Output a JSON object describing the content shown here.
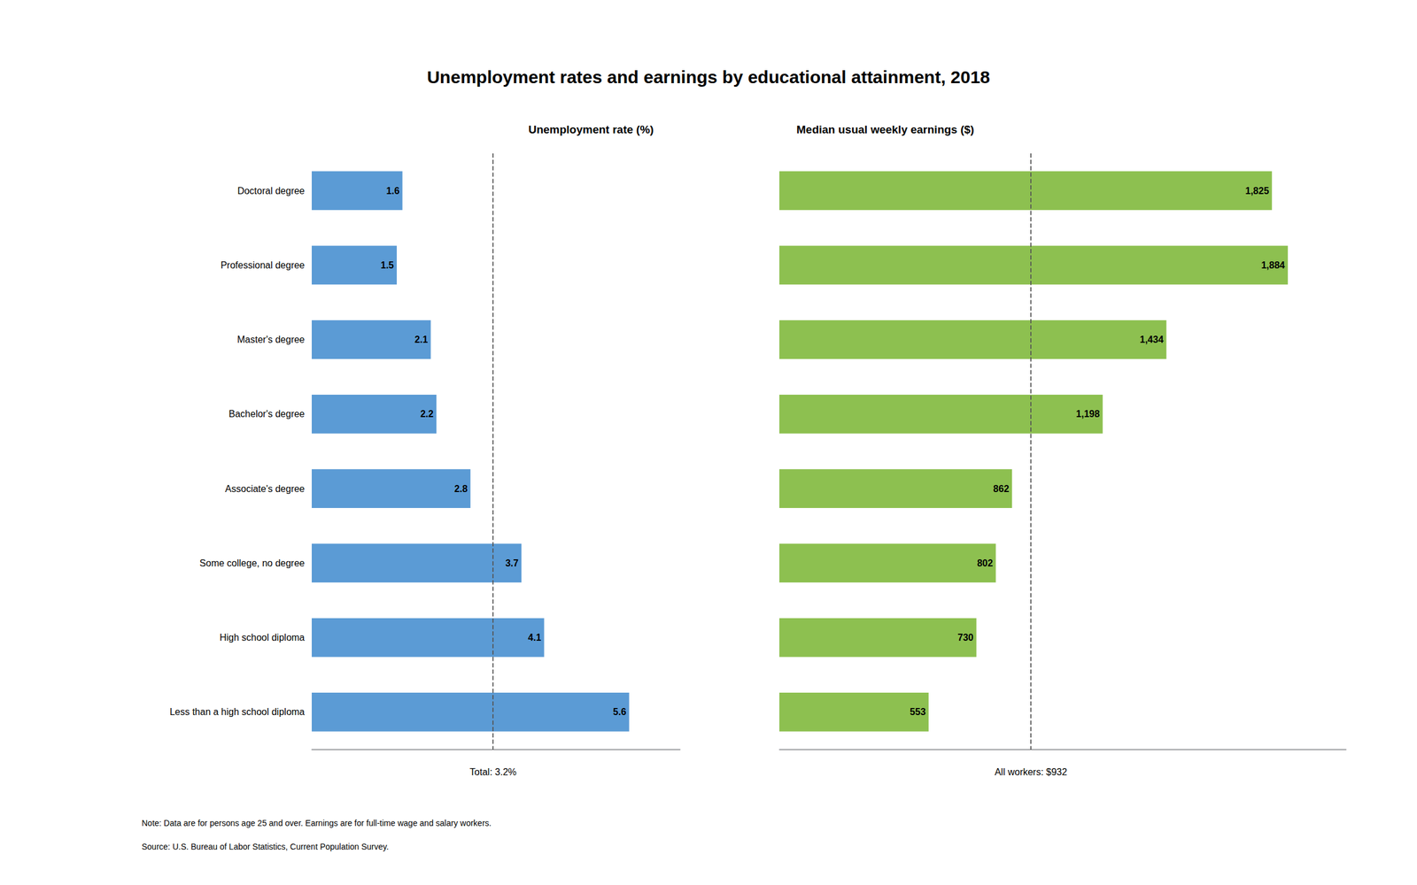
{
  "chart_data": [
    {
      "type": "bar",
      "orientation": "horizontal",
      "title": "Unemployment rates and earnings by educational attainment, 2018",
      "subtitle": "Unemployment rate (%)",
      "categories": [
        "Doctoral degree",
        "Professional degree",
        "Master's degree",
        "Bachelor's degree",
        "Associate's degree",
        "Some college, no degree",
        "High school diploma",
        "Less than a high school diploma"
      ],
      "values": [
        1.6,
        1.5,
        2.1,
        2.2,
        2.8,
        3.7,
        4.1,
        5.6
      ],
      "color": "#5B9BD5",
      "xlim": [
        0,
        6.5
      ],
      "data_labels": true,
      "tick_labels": "y",
      "grid": false,
      "reference_lines": [
        {
          "value": 3.2,
          "label": "Total: 3.2%",
          "color": "#555555",
          "line_style": "dashed"
        }
      ],
      "annotations": [
        "Note: Data are for persons age 25 and over. Earnings are for full-time wage and salary workers.",
        "Source: U.S. Bureau of Labor Statistics, Current Population Survey."
      ]
    },
    {
      "type": "bar",
      "orientation": "horizontal",
      "subtitle": "Median usual weekly earnings ($)",
      "categories": [
        "Doctoral degree",
        "Professional degree",
        "Master's degree",
        "Bachelor's degree",
        "Associate's degree",
        "Some college, no degree",
        "High school diploma",
        "Less than a high school diploma"
      ],
      "values": [
        1825,
        1884,
        1434,
        1198,
        862,
        802,
        730,
        553
      ],
      "value_labels": [
        "1,825",
        "1,884",
        "1,434",
        "1,198",
        "862",
        "802",
        "730",
        "553"
      ],
      "color": "#8DC050",
      "xlim": [
        0,
        2100
      ],
      "data_labels": true,
      "tick_labels": false,
      "grid": false,
      "reference_lines": [
        {
          "value": 932,
          "label": "All workers: $932",
          "color": "#555555",
          "line_style": "dashed"
        }
      ]
    }
  ]
}
